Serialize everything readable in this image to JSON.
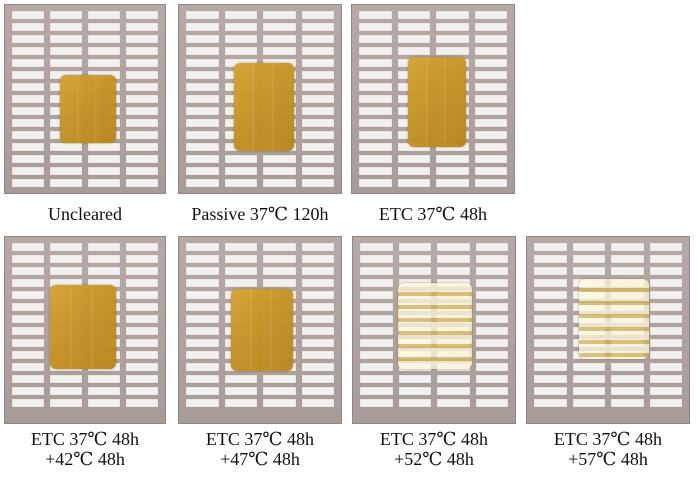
{
  "figure": {
    "panels": [
      {
        "caption_lines": [
          "Uncleared"
        ],
        "tissue_style": "amber"
      },
      {
        "caption_lines": [
          "Passive 37℃ 120h"
        ],
        "tissue_style": "amber"
      },
      {
        "caption_lines": [
          "ETC 37℃ 48h"
        ],
        "tissue_style": "amber"
      },
      {
        "caption_lines": [
          "ETC 37℃ 48h",
          "+42℃ 48h"
        ],
        "tissue_style": "amber"
      },
      {
        "caption_lines": [
          "ETC 37℃ 48h",
          "+47℃ 48h"
        ],
        "tissue_style": "amber"
      },
      {
        "caption_lines": [
          "ETC 37℃ 48h",
          "+52℃ 48h"
        ],
        "tissue_style": "clear"
      },
      {
        "caption_lines": [
          "ETC 37℃ 48h",
          "+57℃ 48h"
        ],
        "tissue_style": "clear"
      }
    ]
  }
}
